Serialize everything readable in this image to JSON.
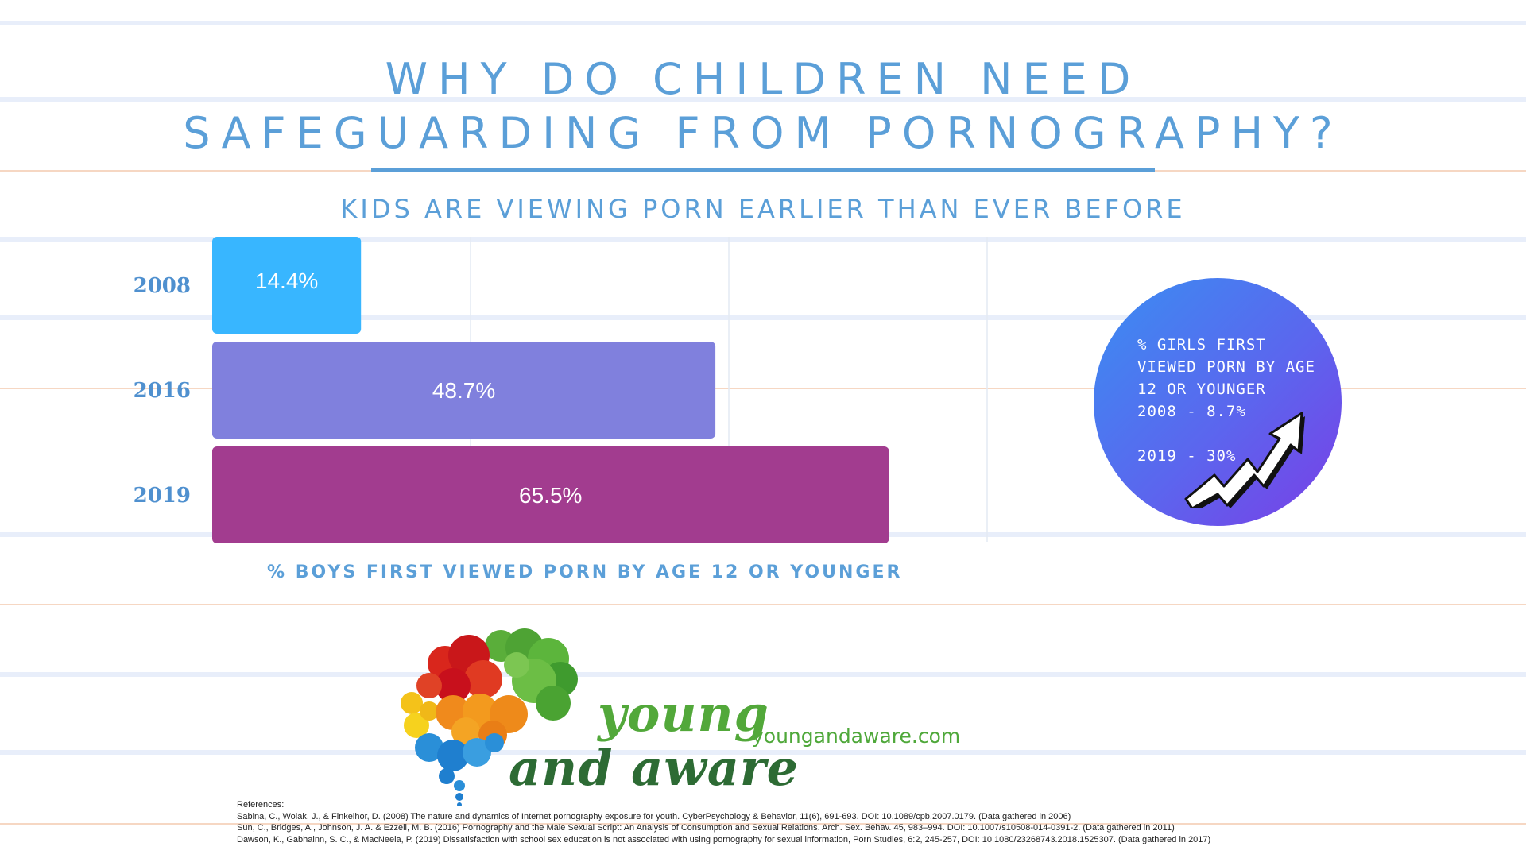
{
  "title_line1": "WHY DO CHILDREN NEED",
  "title_line2": "SAFEGUARDING FROM PORNOGRAPHY?",
  "subtitle": "KIDS ARE VIEWING PORN EARLIER THAN EVER BEFORE",
  "chart_data": {
    "type": "bar",
    "orientation": "horizontal",
    "categories": [
      "2008",
      "2016",
      "2019"
    ],
    "values": [
      14.4,
      48.7,
      65.5
    ],
    "data_labels": [
      "14.4%",
      "48.7%",
      "65.5%"
    ],
    "bar_colors": [
      "#38b6ff",
      "#8080dd",
      "#a23c8f"
    ],
    "xlabel": "% BOYS FIRST VIEWED PORN BY AGE 12 OR YOUNGER",
    "xlim": [
      0,
      75
    ],
    "grid": true
  },
  "callout": {
    "lines": [
      "% GIRLS FIRST",
      "VIEWED PORN BY AGE",
      "12 OR YOUNGER",
      "2008 - 8.7%"
    ],
    "line_2019": "2019 - 30%",
    "icon": "trending-up-arrow-icon",
    "gradient": [
      "#3a8ef2",
      "#7a3ee6"
    ]
  },
  "brand": {
    "word1": "young",
    "word2": "and aware",
    "website": "youngandaware.com",
    "logo": "brain-bubbles-logo"
  },
  "references": {
    "heading": "References:",
    "items": [
      "Sabina, C., Wolak, J., & Finkelhor, D. (2008) The nature and dynamics of Internet pornography exposure for youth. CyberPsychology & Behavior, 11(6), 691-693. DOI: 10.1089/cpb.2007.0179. (Data gathered in 2006)",
      "Sun, C., Bridges, A., Johnson, J. A. & Ezzell, M. B. (2016) Pornography and the Male Sexual Script: An Analysis of Consumption and Sexual Relations. Arch. Sex. Behav. 45, 983–994. DOI: 10.1007/s10508-014-0391-2. (Data gathered in 2011)",
      "Dawson, K., Gabhainn, S. C., & MacNeela, P. (2019) Dissatisfaction with school sex education is not associated with using pornography for sexual information, Porn Studies, 6:2, 245-257, DOI: 10.1080/23268743.2018.1525307. (Data gathered in 2017)"
    ]
  }
}
